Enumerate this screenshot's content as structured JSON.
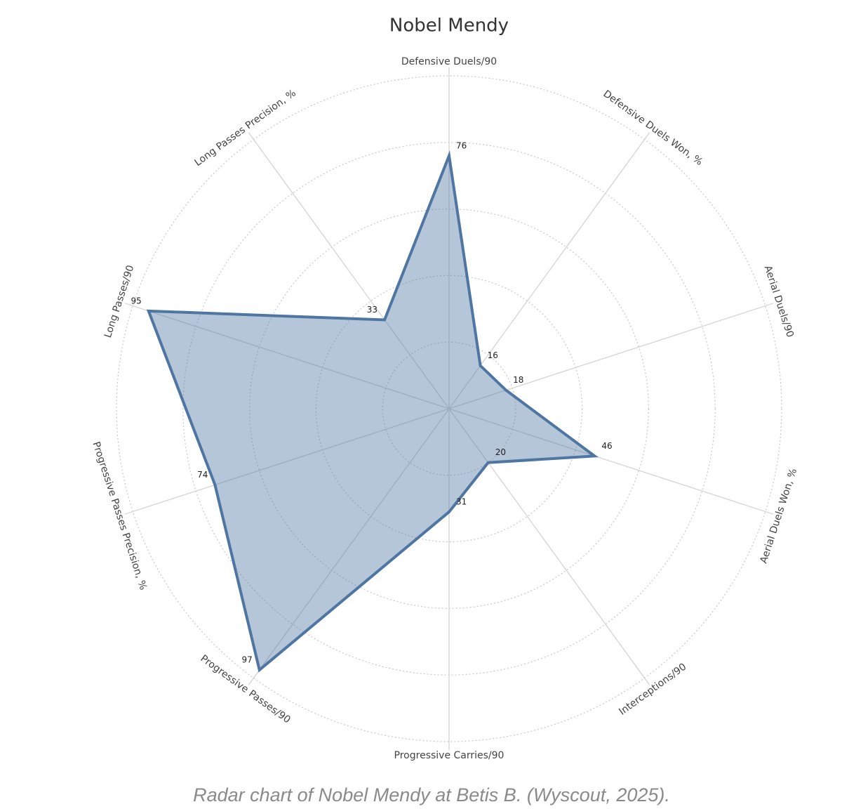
{
  "chart_data": {
    "type": "radar",
    "title": "Nobel Mendy",
    "categories": [
      "Defensive Duels/90",
      "Defensive Duels Won, %",
      "Aerial Duels/90",
      "Aerial Duels Won, %",
      "Interceptions/90",
      "Progressive Carries/90",
      "Progressive Passes/90",
      "Progressive Passes Precision, %",
      "Long Passes/90",
      "Long Passes Precision, %"
    ],
    "series": [
      {
        "name": "Nobel Mendy",
        "color": "#4f76a3",
        "values": [
          76,
          16,
          18,
          46,
          20,
          31,
          97,
          74,
          95,
          33
        ]
      }
    ],
    "rlim": [
      0,
      100
    ],
    "rticks": [
      20,
      40,
      60,
      80,
      100
    ],
    "grid": true
  },
  "caption": "Radar chart of Nobel Mendy at Betis B. (Wyscout, 2025)."
}
